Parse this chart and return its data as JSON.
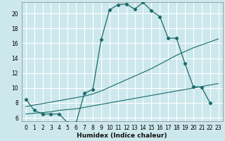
{
  "xlabel": "Humidex (Indice chaleur)",
  "bg_color": "#cce8ec",
  "grid_color": "#b0d8dc",
  "line_color": "#1a6b6b",
  "xlim": [
    -0.5,
    23.5
  ],
  "ylim": [
    5.5,
    21.5
  ],
  "yticks": [
    6,
    8,
    10,
    12,
    14,
    16,
    18,
    20
  ],
  "xticks": [
    0,
    1,
    2,
    3,
    4,
    5,
    6,
    7,
    8,
    9,
    10,
    11,
    12,
    13,
    14,
    15,
    16,
    17,
    18,
    19,
    20,
    21,
    22,
    23
  ],
  "series1_x": [
    0,
    1,
    2,
    3,
    4,
    5,
    6,
    7,
    8,
    9,
    10,
    11,
    12,
    13,
    14,
    15,
    16,
    17,
    18,
    19,
    20,
    21,
    22
  ],
  "series1_y": [
    8.5,
    7.0,
    6.5,
    6.5,
    6.5,
    5.3,
    5.3,
    9.3,
    9.8,
    16.5,
    20.5,
    21.2,
    21.3,
    20.6,
    21.5,
    20.4,
    19.6,
    16.7,
    16.7,
    13.3,
    10.2,
    10.1,
    8.0
  ],
  "series2_x": [
    0,
    1,
    2,
    3,
    4,
    5,
    6,
    7,
    8,
    9,
    10,
    11,
    12,
    13,
    14,
    15,
    16,
    17,
    18,
    19,
    20,
    21,
    22,
    23
  ],
  "series2_y": [
    6.5,
    6.6,
    6.7,
    6.8,
    7.0,
    7.1,
    7.2,
    7.4,
    7.6,
    7.8,
    8.0,
    8.2,
    8.4,
    8.6,
    8.8,
    9.0,
    9.2,
    9.4,
    9.6,
    9.8,
    10.0,
    10.2,
    10.4,
    10.6
  ],
  "series3_x": [
    0,
    1,
    2,
    3,
    4,
    5,
    6,
    7,
    8,
    9,
    10,
    11,
    12,
    13,
    14,
    15,
    16,
    17,
    18,
    19,
    20,
    21,
    22,
    23
  ],
  "series3_y": [
    7.5,
    7.7,
    7.9,
    8.1,
    8.3,
    8.5,
    8.7,
    8.9,
    9.2,
    9.6,
    10.1,
    10.6,
    11.1,
    11.6,
    12.1,
    12.6,
    13.2,
    13.8,
    14.4,
    14.9,
    15.4,
    15.8,
    16.2,
    16.6
  ]
}
